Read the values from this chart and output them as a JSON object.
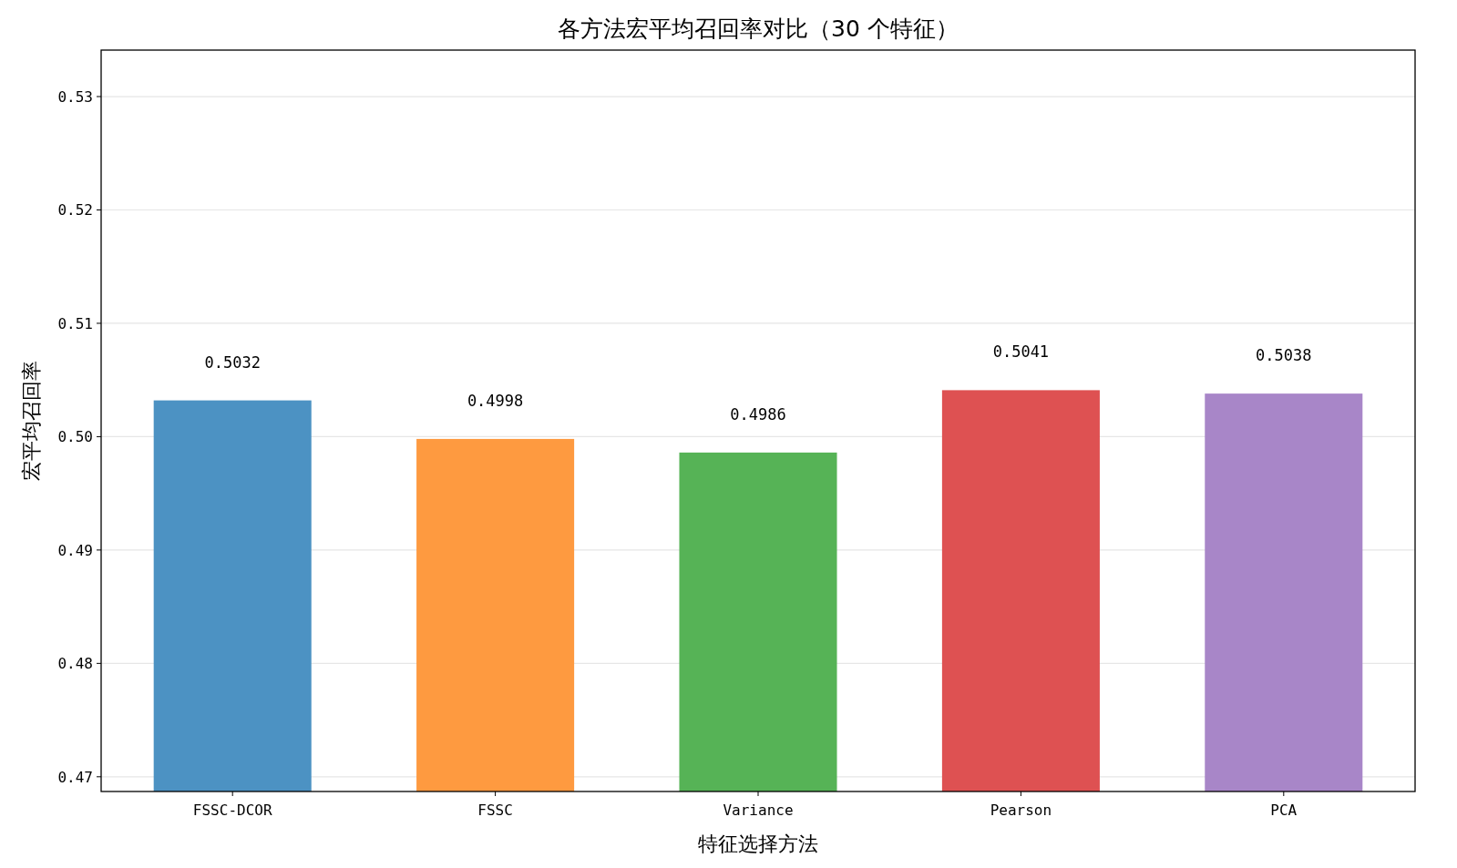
{
  "chart_data": {
    "type": "bar",
    "title": "各方法宏平均召回率对比（30 个特征）",
    "xlabel": "特征选择方法",
    "ylabel": "宏平均召回率",
    "categories": [
      "FSSC-DCOR",
      "FSSC",
      "Variance",
      "Pearson",
      "PCA"
    ],
    "values": [
      0.5032,
      0.4998,
      0.4986,
      0.5041,
      0.5038
    ],
    "colors": [
      "#4c92c3",
      "#fe9a40",
      "#56b356",
      "#de5152",
      "#a886c8"
    ],
    "ylim": [
      0.4687,
      0.5341
    ],
    "yticks": [
      {
        "value": 0.47,
        "label": "0.47"
      },
      {
        "value": 0.48,
        "label": "0.48"
      },
      {
        "value": 0.49,
        "label": "0.49"
      },
      {
        "value": 0.5,
        "label": "0.50"
      },
      {
        "value": 0.51,
        "label": "0.51"
      },
      {
        "value": 0.52,
        "label": "0.52"
      },
      {
        "value": 0.53,
        "label": "0.53"
      }
    ],
    "grid": "y",
    "data_labels": true
  }
}
